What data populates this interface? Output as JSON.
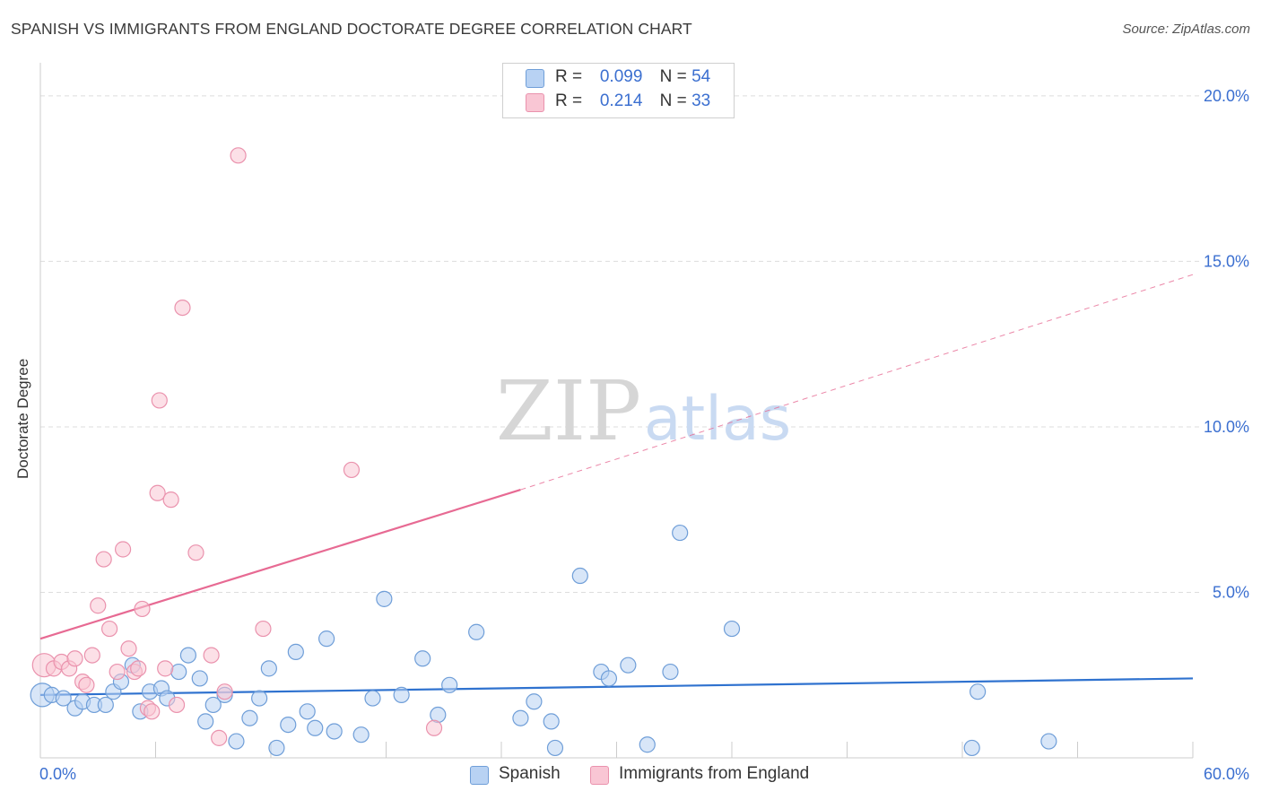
{
  "title": "SPANISH VS IMMIGRANTS FROM ENGLAND DOCTORATE DEGREE CORRELATION CHART",
  "source": "Source: ZipAtlas.com",
  "watermark": {
    "zip": "ZIP",
    "atlas": "atlas"
  },
  "colors": {
    "spanish_fill": "#b8d2f3",
    "spanish_stroke": "#6f9ed8",
    "spanish_line": "#2f72cf",
    "england_fill": "#f9c6d4",
    "england_stroke": "#ea92ad",
    "england_line": "#e76a93",
    "axis_label": "#3b6fd0",
    "grid": "#dddddd"
  },
  "legend": {
    "rows": [
      {
        "r_label": "R =",
        "r_value": "0.099",
        "n_label": "N =",
        "n_value": "54"
      },
      {
        "r_label": "R =",
        "r_value": "0.214",
        "n_label": "N =",
        "n_value": "33"
      }
    ]
  },
  "bottom_legend": [
    {
      "label": "Spanish"
    },
    {
      "label": "Immigrants from England"
    }
  ],
  "chart_data": {
    "type": "scatter",
    "title": "SPANISH VS IMMIGRANTS FROM ENGLAND DOCTORATE DEGREE CORRELATION CHART",
    "xlabel": "",
    "ylabel": "Doctorate Degree",
    "xlim": [
      0,
      60
    ],
    "ylim": [
      0,
      21
    ],
    "x_tick_labels": [
      "0.0%",
      "60.0%"
    ],
    "y_ticks": [
      5,
      10,
      15,
      20
    ],
    "y_tick_labels": [
      "5.0%",
      "10.0%",
      "15.0%",
      "20.0%"
    ],
    "series": [
      {
        "name": "Spanish",
        "r": 0.099,
        "n": 54,
        "trend": {
          "x": [
            0,
            60
          ],
          "y": [
            1.9,
            2.4
          ],
          "dashed_extension": false
        },
        "points": [
          [
            0.1,
            1.9
          ],
          [
            0.6,
            1.9
          ],
          [
            1.2,
            1.8
          ],
          [
            1.8,
            1.5
          ],
          [
            2.2,
            1.7
          ],
          [
            2.8,
            1.6
          ],
          [
            3.4,
            1.6
          ],
          [
            3.8,
            2.0
          ],
          [
            4.2,
            2.3
          ],
          [
            4.8,
            2.8
          ],
          [
            5.2,
            1.4
          ],
          [
            5.7,
            2.0
          ],
          [
            6.3,
            2.1
          ],
          [
            6.6,
            1.8
          ],
          [
            7.2,
            2.6
          ],
          [
            7.7,
            3.1
          ],
          [
            8.3,
            2.4
          ],
          [
            8.6,
            1.1
          ],
          [
            9.0,
            1.6
          ],
          [
            9.6,
            1.9
          ],
          [
            10.2,
            0.5
          ],
          [
            10.9,
            1.2
          ],
          [
            11.4,
            1.8
          ],
          [
            11.9,
            2.7
          ],
          [
            12.3,
            0.3
          ],
          [
            12.9,
            1.0
          ],
          [
            13.3,
            3.2
          ],
          [
            13.9,
            1.4
          ],
          [
            14.3,
            0.9
          ],
          [
            14.9,
            3.6
          ],
          [
            15.3,
            0.8
          ],
          [
            16.7,
            0.7
          ],
          [
            17.3,
            1.8
          ],
          [
            17.9,
            4.8
          ],
          [
            18.8,
            1.9
          ],
          [
            19.9,
            3.0
          ],
          [
            20.7,
            1.3
          ],
          [
            21.3,
            2.2
          ],
          [
            22.7,
            3.8
          ],
          [
            25.0,
            1.2
          ],
          [
            25.7,
            1.7
          ],
          [
            26.6,
            1.1
          ],
          [
            26.8,
            0.3
          ],
          [
            28.1,
            5.5
          ],
          [
            29.2,
            2.6
          ],
          [
            29.6,
            2.4
          ],
          [
            30.6,
            2.8
          ],
          [
            31.6,
            0.4
          ],
          [
            32.8,
            2.6
          ],
          [
            33.3,
            6.8
          ],
          [
            36.0,
            3.9
          ],
          [
            48.5,
            0.3
          ],
          [
            48.8,
            2.0
          ],
          [
            52.5,
            0.5
          ]
        ]
      },
      {
        "name": "Immigrants from England",
        "r": 0.214,
        "n": 33,
        "trend": {
          "x": [
            0,
            25,
            60
          ],
          "y": [
            3.6,
            8.1,
            14.6
          ],
          "dashed_extension": true
        },
        "points": [
          [
            0.2,
            2.8
          ],
          [
            0.7,
            2.7
          ],
          [
            1.1,
            2.9
          ],
          [
            1.5,
            2.7
          ],
          [
            1.8,
            3.0
          ],
          [
            2.2,
            2.3
          ],
          [
            2.4,
            2.2
          ],
          [
            2.7,
            3.1
          ],
          [
            3.0,
            4.6
          ],
          [
            3.3,
            6.0
          ],
          [
            3.6,
            3.9
          ],
          [
            4.0,
            2.6
          ],
          [
            4.3,
            6.3
          ],
          [
            4.6,
            3.3
          ],
          [
            4.9,
            2.6
          ],
          [
            5.1,
            2.7
          ],
          [
            5.3,
            4.5
          ],
          [
            5.6,
            1.5
          ],
          [
            5.8,
            1.4
          ],
          [
            6.1,
            8.0
          ],
          [
            6.2,
            10.8
          ],
          [
            6.5,
            2.7
          ],
          [
            6.8,
            7.8
          ],
          [
            7.1,
            1.6
          ],
          [
            7.4,
            13.6
          ],
          [
            8.1,
            6.2
          ],
          [
            8.9,
            3.1
          ],
          [
            9.3,
            0.6
          ],
          [
            9.6,
            2.0
          ],
          [
            10.3,
            18.2
          ],
          [
            11.6,
            3.9
          ],
          [
            16.2,
            8.7
          ],
          [
            20.5,
            0.9
          ]
        ]
      }
    ]
  }
}
